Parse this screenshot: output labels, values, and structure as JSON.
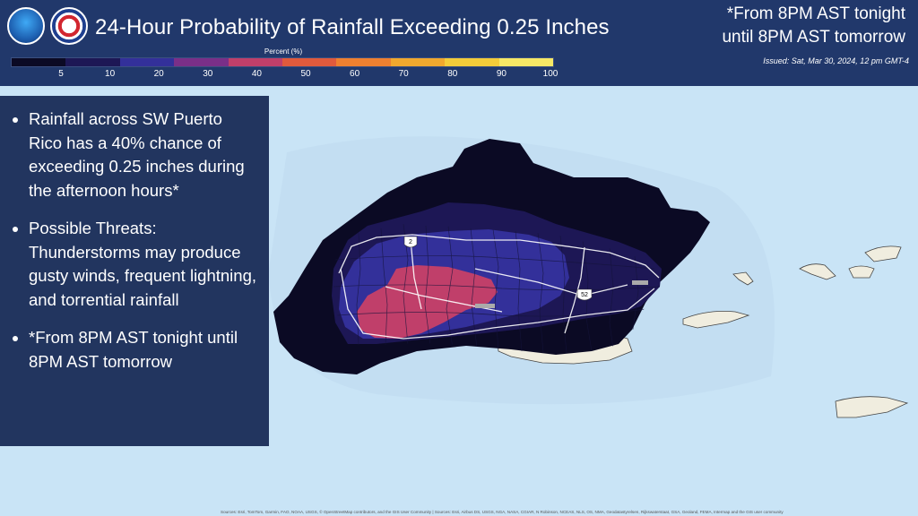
{
  "header": {
    "title": "24-Hour Probability of Rainfall Exceeding 0.25 Inches",
    "right_line1": "*From 8PM AST tonight",
    "right_line2": "until 8PM AST tomorrow",
    "issued": "Issued: Sat, Mar 30, 2024, 12 pm GMT-4",
    "logos": [
      "noaa-logo",
      "nws-logo"
    ]
  },
  "legend": {
    "title": "Percent (%)",
    "ticks": [
      "5",
      "10",
      "20",
      "30",
      "40",
      "50",
      "60",
      "70",
      "80",
      "90",
      "100"
    ],
    "colors": [
      "#0b0a24",
      "#1d1755",
      "#33309a",
      "#7a2f88",
      "#c03f6a",
      "#e05a3c",
      "#ee8030",
      "#f0a82e",
      "#f3cc3a",
      "#f6e866",
      "#fbf6b4"
    ]
  },
  "panel": {
    "bullets": [
      "Rainfall across SW Puerto Rico has a 40% chance of exceeding 0.25 inches during the afternoon hours*",
      "Possible Threats: Thunderstorms may produce gusty winds, frequent lightning, and torrential rainfall",
      "*From 8PM AST tonight until 8PM AST tomorrow"
    ]
  },
  "map": {
    "road_labels": [
      "2",
      "52"
    ],
    "colors": {
      "ocean": "#c9e4f6",
      "land": "#f0eddf",
      "prob_5": "#0b0a24",
      "prob_10": "#1d1755",
      "prob_20": "#33309a",
      "prob_40": "#c03f6a"
    }
  },
  "attribution": "Sources: Esri, TomTom, Garmin, FAO, NOAA, USGS, © OpenStreetMap contributors, and the GIS User Community | Sources: Esri, Airbus DS, USGS, NGA, NASA, CGIAR, N Robinson, NCEAS, NLS, OS, NMA, Geodatastyrelsen, Rijkswaterstaat, GSA, Geoland, FEMA, Intermap and the GIS user community"
}
